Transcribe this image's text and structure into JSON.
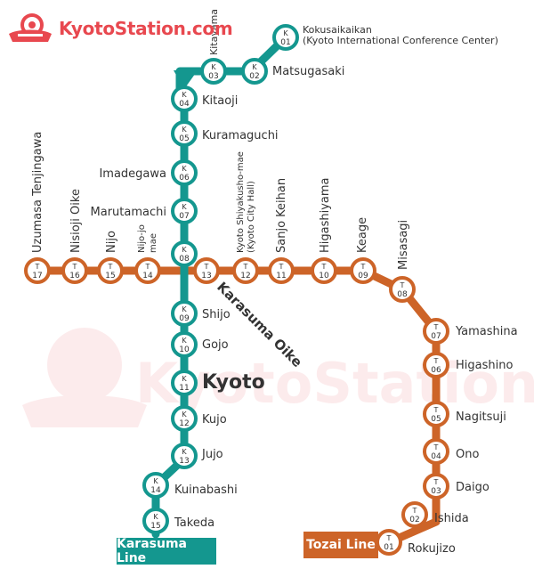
{
  "brand": {
    "name": "KyotoStation.com",
    "watermark": "KyotoStation.com",
    "color": "#e8484f"
  },
  "lines": {
    "karasuma": {
      "name": "Karasuma Line",
      "color": "#14978f"
    },
    "tozai": {
      "name": "Tozai Line",
      "color": "#cd6428"
    }
  },
  "stations": {
    "k01": {
      "code": "K",
      "num": "01",
      "name": "Kokusaikaikan",
      "sub": "(Kyoto International Conference Center)"
    },
    "k02": {
      "code": "K",
      "num": "02",
      "name": "Matsugasaki"
    },
    "k03": {
      "code": "K",
      "num": "03",
      "name": "Kitayama"
    },
    "k04": {
      "code": "K",
      "num": "04",
      "name": "Kitaoji"
    },
    "k05": {
      "code": "K",
      "num": "05",
      "name": "Kuramaguchi"
    },
    "k06": {
      "code": "K",
      "num": "06",
      "name": "Imadegawa"
    },
    "k07": {
      "code": "K",
      "num": "07",
      "name": "Marutamachi"
    },
    "k08": {
      "code": "K",
      "num": "08"
    },
    "k09": {
      "code": "K",
      "num": "09",
      "name": "Shijo"
    },
    "k10": {
      "code": "K",
      "num": "10",
      "name": "Gojo"
    },
    "k11": {
      "code": "K",
      "num": "11",
      "name": "Kyoto"
    },
    "k12": {
      "code": "K",
      "num": "12",
      "name": "Kujo"
    },
    "k13": {
      "code": "K",
      "num": "13",
      "name": "Jujo"
    },
    "k14": {
      "code": "K",
      "num": "14",
      "name": "Kuinabashi"
    },
    "k15": {
      "code": "K",
      "num": "15",
      "name": "Takeda"
    },
    "t17": {
      "code": "T",
      "num": "17",
      "name": "Uzumasa Tenjingawa"
    },
    "t16": {
      "code": "T",
      "num": "16",
      "name": "Nisioji Oike"
    },
    "t15": {
      "code": "T",
      "num": "15",
      "name": "Nijo"
    },
    "t14": {
      "code": "T",
      "num": "14",
      "name": "Nijo-jo",
      "name2": "mae"
    },
    "t13": {
      "code": "T",
      "num": "13"
    },
    "t12": {
      "code": "T",
      "num": "12",
      "name": "Kyoto Shiyakusho-mae",
      "name2": "(Kyoto City Hall)"
    },
    "t11": {
      "code": "T",
      "num": "11",
      "name": "Sanjo Keihan"
    },
    "t10": {
      "code": "T",
      "num": "10",
      "name": "Higashiyama"
    },
    "t09": {
      "code": "T",
      "num": "09",
      "name": "Keage"
    },
    "t08": {
      "code": "T",
      "num": "08",
      "name": "Misasagi"
    },
    "t07": {
      "code": "T",
      "num": "07",
      "name": "Yamashina"
    },
    "t06": {
      "code": "T",
      "num": "06",
      "name": "Higashino"
    },
    "t05": {
      "code": "T",
      "num": "05",
      "name": "Nagitsuji"
    },
    "t04": {
      "code": "T",
      "num": "04",
      "name": "Ono"
    },
    "t03": {
      "code": "T",
      "num": "03",
      "name": "Daigo"
    },
    "t02": {
      "code": "T",
      "num": "02",
      "name": "Ishida"
    },
    "t01": {
      "code": "T",
      "num": "01",
      "name": "Rokujizo"
    }
  },
  "junction": {
    "name": "Karasuma Oike"
  }
}
